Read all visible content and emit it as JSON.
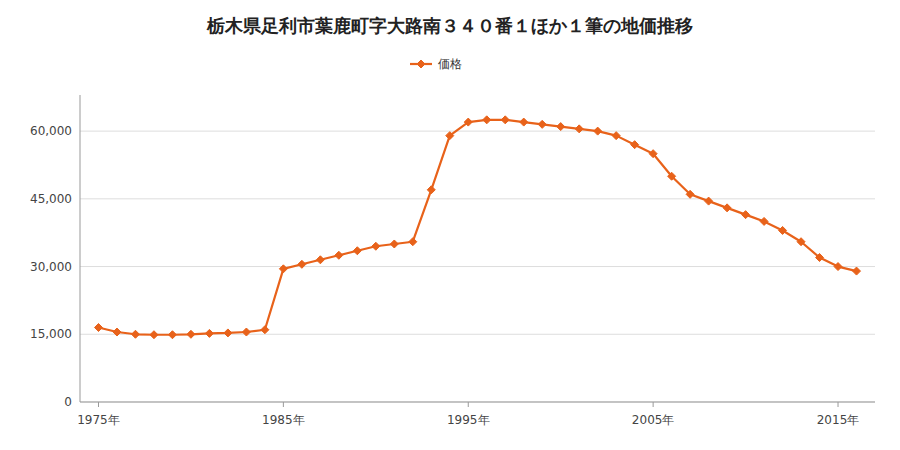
{
  "chart_data": {
    "type": "line",
    "title": "栃木県足利市葉鹿町字大路南３４０番１ほか１筆の地価推移",
    "x": [
      1975,
      1976,
      1977,
      1978,
      1979,
      1980,
      1981,
      1982,
      1983,
      1984,
      1985,
      1986,
      1987,
      1988,
      1989,
      1990,
      1991,
      1992,
      1993,
      1994,
      1995,
      1996,
      1997,
      1998,
      1999,
      2000,
      2001,
      2002,
      2003,
      2004,
      2005,
      2006,
      2007,
      2008,
      2009,
      2010,
      2011,
      2012,
      2013,
      2014,
      2015,
      2016
    ],
    "series": [
      {
        "name": "価格",
        "color": "#e8621a",
        "marker": "diamond",
        "values": [
          16500,
          15500,
          15000,
          14900,
          14900,
          15000,
          15200,
          15300,
          15500,
          16000,
          29500,
          30500,
          31500,
          32500,
          33500,
          34500,
          35000,
          35500,
          47000,
          59000,
          62000,
          62500,
          62500,
          62000,
          61500,
          61000,
          60500,
          60000,
          59000,
          57000,
          55000,
          50000,
          46000,
          44500,
          43000,
          41500,
          40000,
          38000,
          35500,
          32000,
          30000,
          29000
        ]
      }
    ],
    "xlim": [
      1974,
      2017
    ],
    "xticks": [
      {
        "value": 1975,
        "label": "1975年"
      },
      {
        "value": 1985,
        "label": "1985年"
      },
      {
        "value": 1995,
        "label": "1995年"
      },
      {
        "value": 2005,
        "label": "2005年"
      },
      {
        "value": 2015,
        "label": "2015年"
      }
    ],
    "ylim": [
      0,
      68000
    ],
    "yticks": [
      0,
      {
        "value": 15000,
        "label": "15,000"
      },
      {
        "value": 30000,
        "label": "30,000"
      },
      {
        "value": 45000,
        "label": "45,000"
      },
      {
        "value": 60000,
        "label": "60,000"
      }
    ],
    "grid": "y",
    "legend": "top"
  }
}
